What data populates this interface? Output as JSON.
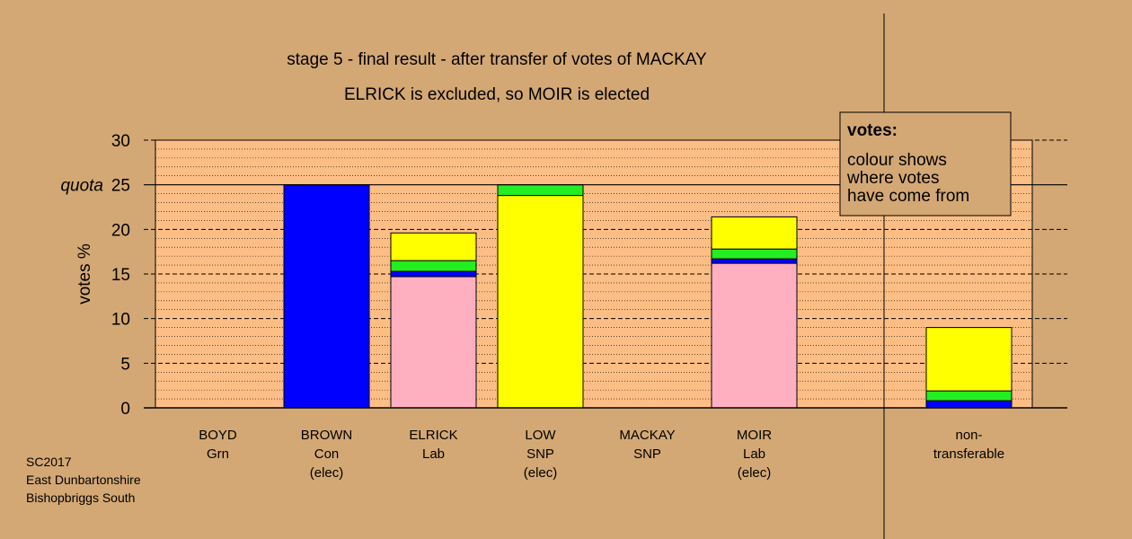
{
  "title_line1": "stage 5 - final result - after transfer of votes of MACKAY",
  "title_line2": "ELRICK is excluded, so MOIR is elected",
  "legend": {
    "heading": "votes:",
    "lines": [
      "colour shows",
      "where votes",
      "have come from"
    ]
  },
  "source": [
    "SC2017",
    "East Dunbartonshire",
    "Bishopbriggs South"
  ],
  "colors": {
    "background": "#d4a874",
    "plot": "#fdbe86",
    "Con": "#0000ff",
    "Lab": "#ffb0c0",
    "SNP": "#ffff00",
    "Grn": "#22ee22"
  },
  "chart_data": {
    "type": "bar",
    "stacked": true,
    "ylabel": "votes %",
    "ylim": [
      0,
      30
    ],
    "yticks": [
      0,
      5,
      10,
      15,
      20,
      25,
      30
    ],
    "quota": {
      "label": "quota",
      "value": 25
    },
    "categories": [
      {
        "lines": [
          "BOYD",
          "Grn"
        ]
      },
      {
        "lines": [
          "BROWN",
          "Con",
          "(elec)"
        ]
      },
      {
        "lines": [
          "ELRICK",
          "Lab"
        ]
      },
      {
        "lines": [
          "LOW",
          "SNP",
          "(elec)"
        ]
      },
      {
        "lines": [
          "MACKAY",
          "SNP"
        ]
      },
      {
        "lines": [
          "MOIR",
          "Lab",
          "(elec)"
        ]
      },
      {
        "lines": [
          "non-",
          "transferable"
        ]
      }
    ],
    "bars": [
      {
        "segments": []
      },
      {
        "segments": [
          {
            "source": "Con",
            "value": 25.0
          }
        ]
      },
      {
        "segments": [
          {
            "source": "Lab",
            "value": 14.7
          },
          {
            "source": "Con",
            "value": 0.6
          },
          {
            "source": "Grn",
            "value": 1.2
          },
          {
            "source": "SNP",
            "value": 3.1
          }
        ]
      },
      {
        "segments": [
          {
            "source": "SNP",
            "value": 23.8
          },
          {
            "source": "Grn",
            "value": 1.2
          }
        ]
      },
      {
        "segments": []
      },
      {
        "segments": [
          {
            "source": "Lab",
            "value": 16.2
          },
          {
            "source": "Con",
            "value": 0.5
          },
          {
            "source": "Grn",
            "value": 1.1
          },
          {
            "source": "SNP",
            "value": 3.6
          }
        ]
      },
      {
        "segments": [
          {
            "source": "Con",
            "value": 0.8
          },
          {
            "source": "Grn",
            "value": 1.1
          },
          {
            "source": "SNP",
            "value": 7.1
          }
        ]
      }
    ]
  }
}
